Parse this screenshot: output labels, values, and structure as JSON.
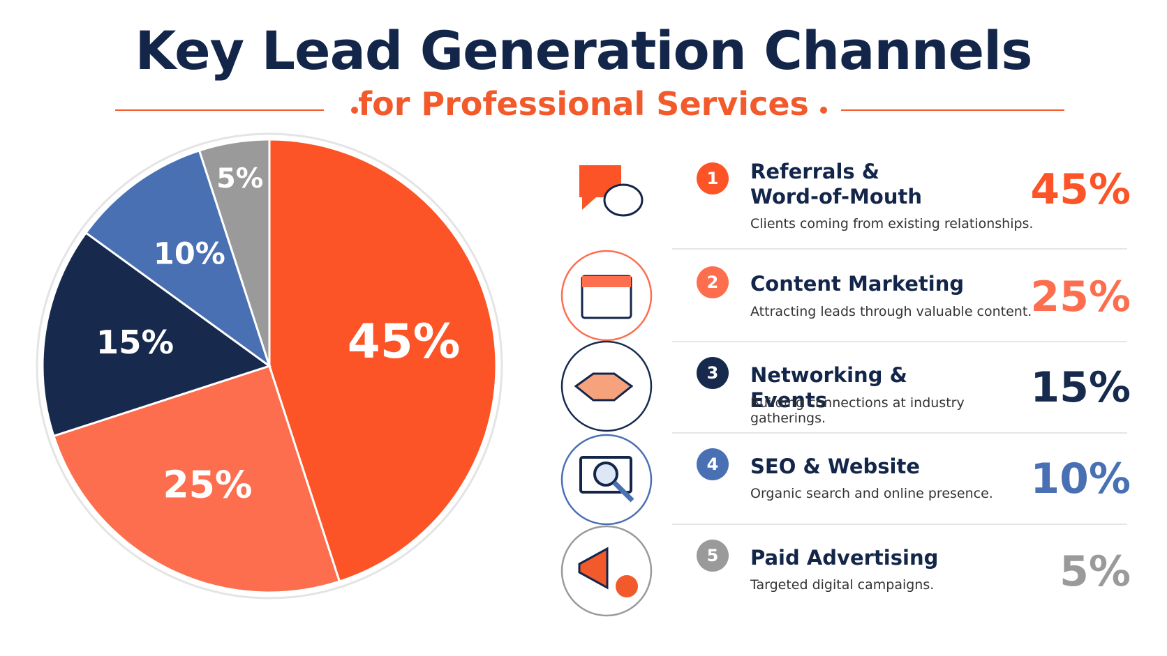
{
  "chart_data": {
    "type": "pie",
    "title": "Key Lead Generation Channels",
    "subtitle": "for Professional Services",
    "categories": [
      "Referrals & Word-of-Mouth",
      "Content Marketing",
      "Networking & Events",
      "SEO & Website",
      "Paid Advertising"
    ],
    "values": [
      45,
      25,
      15,
      10,
      5
    ],
    "value_labels": [
      "45%",
      "25%",
      "15%",
      "10%",
      "5%"
    ],
    "colors": [
      "#fc5427",
      "#fd6e4e",
      "#172a4d",
      "#4a70b4",
      "#9a9a9a"
    ],
    "ranks": [
      "1",
      "2",
      "3",
      "4",
      "5"
    ],
    "descriptions": [
      "Clients coming from existing relationships.",
      "Attracting leads through valuable content.",
      "Building connections at industry gatherings.",
      "Organic search and online presence.",
      "Targeted digital campaigns."
    ]
  }
}
